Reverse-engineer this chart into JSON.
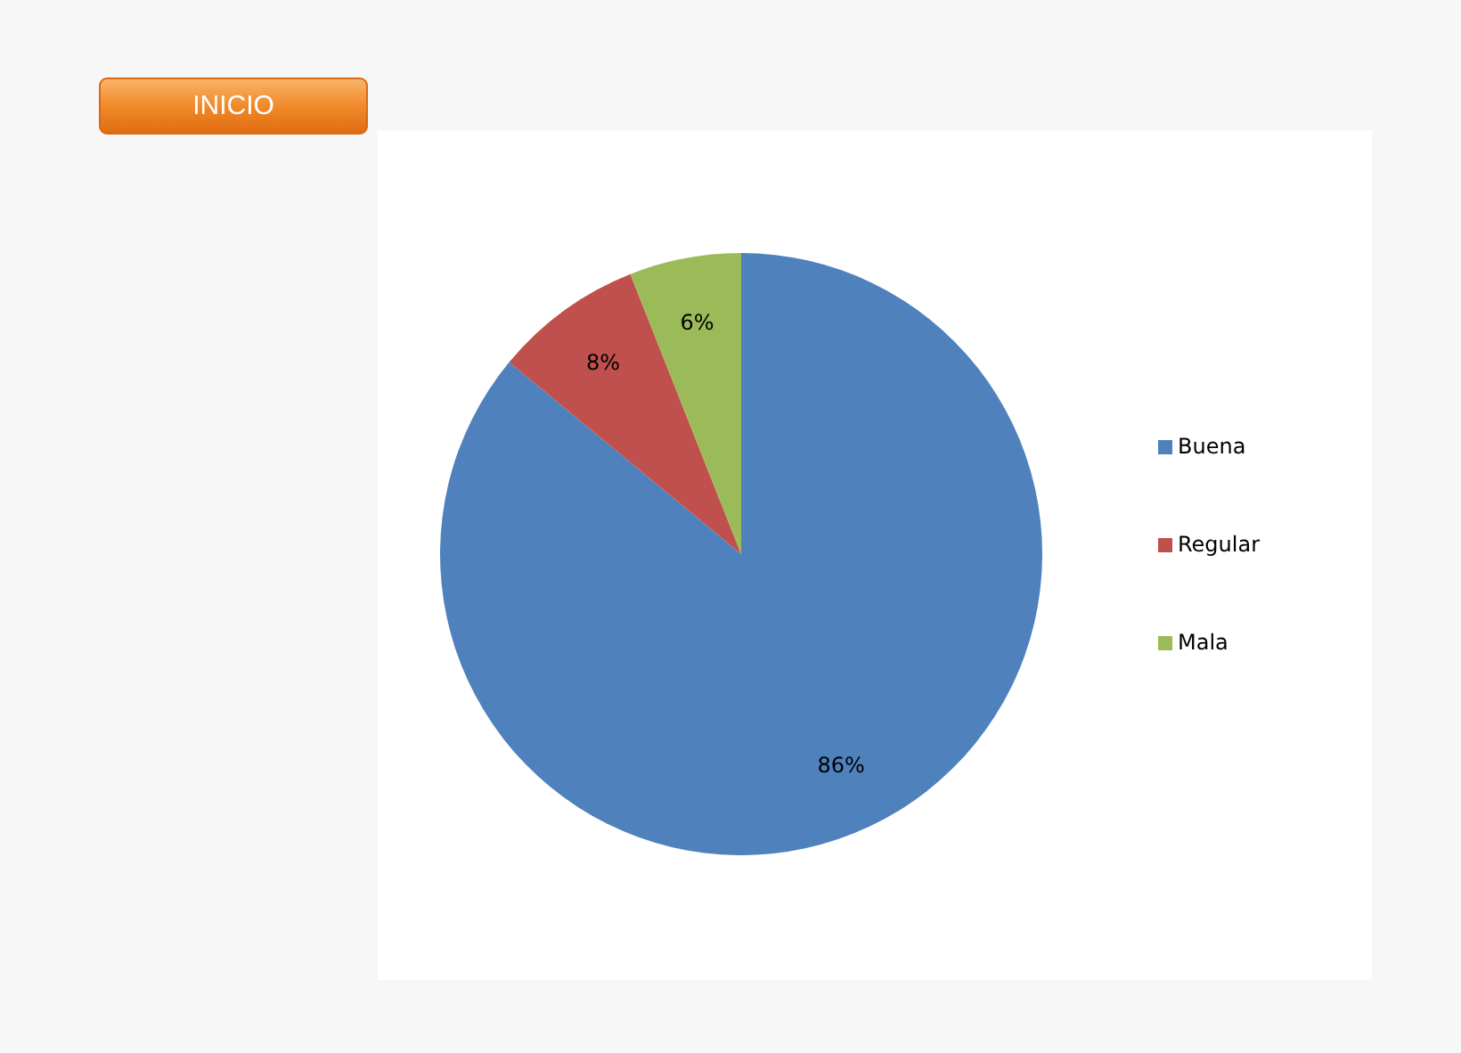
{
  "chart_data": {
    "type": "pie",
    "categories": [
      "Buena",
      "Regular",
      "Mala"
    ],
    "values": [
      86,
      8,
      6
    ],
    "colors": [
      "#4f81bd",
      "#c0504d",
      "#9bbb59"
    ],
    "value_labels": [
      "86%",
      "8%",
      "6%"
    ],
    "legend": "right",
    "annotations": [
      "INICIO"
    ]
  }
}
